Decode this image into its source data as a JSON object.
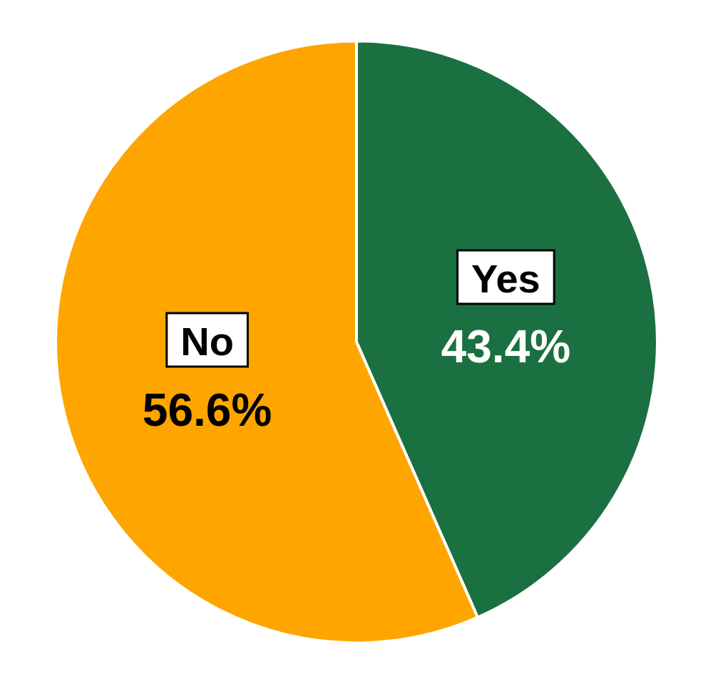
{
  "chart_data": {
    "type": "pie",
    "categories": [
      "Yes",
      "No"
    ],
    "values": [
      43.4,
      56.6
    ],
    "value_labels": [
      "43.4%",
      "56.6%"
    ],
    "colors": [
      "#1a7040",
      "#FFA500"
    ],
    "data_labels": true,
    "legend": false
  }
}
